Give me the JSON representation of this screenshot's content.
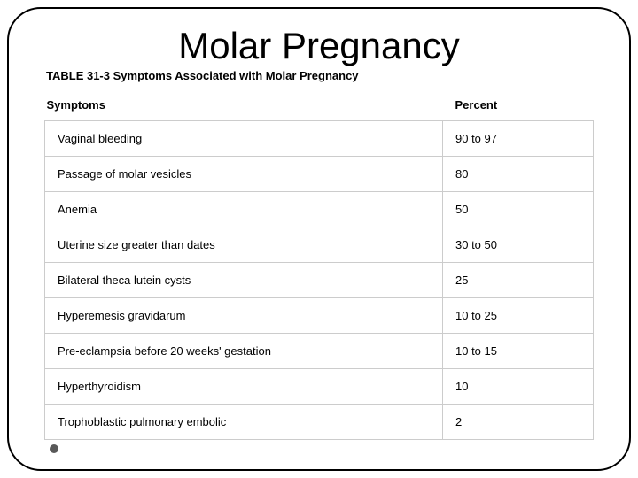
{
  "slide": {
    "title": "Molar Pregnancy",
    "table": {
      "caption": "TABLE 31-3 Symptoms Associated with Molar Pregnancy",
      "columns": [
        "Symptoms",
        "Percent"
      ],
      "rows": [
        {
          "symptom": "Vaginal bleeding",
          "percent": "90 to 97"
        },
        {
          "symptom": "Passage of molar vesicles",
          "percent": "80"
        },
        {
          "symptom": "Anemia",
          "percent": "50"
        },
        {
          "symptom": "Uterine size greater than dates",
          "percent": "30 to 50"
        },
        {
          "symptom": "Bilateral theca lutein cysts",
          "percent": "25"
        },
        {
          "symptom": "Hyperemesis gravidarum",
          "percent": "10 to 25"
        },
        {
          "symptom": "Pre-eclampsia before 20 weeks' gestation",
          "percent": "10 to 15"
        },
        {
          "symptom": "Hyperthyroidism",
          "percent": "10"
        },
        {
          "symptom": "Trophoblastic pulmonary embolic",
          "percent": "2"
        }
      ]
    },
    "styling": {
      "frame_border_color": "#000000",
      "frame_border_radius": 38,
      "title_fontsize": 42,
      "caption_fontsize": 13,
      "header_fontsize": 13,
      "cell_fontsize": 13,
      "cell_border_color": "#cccccc",
      "text_color": "#000000",
      "background_color": "#ffffff",
      "bullet_color": "#595959",
      "percent_col_width": 170
    }
  }
}
